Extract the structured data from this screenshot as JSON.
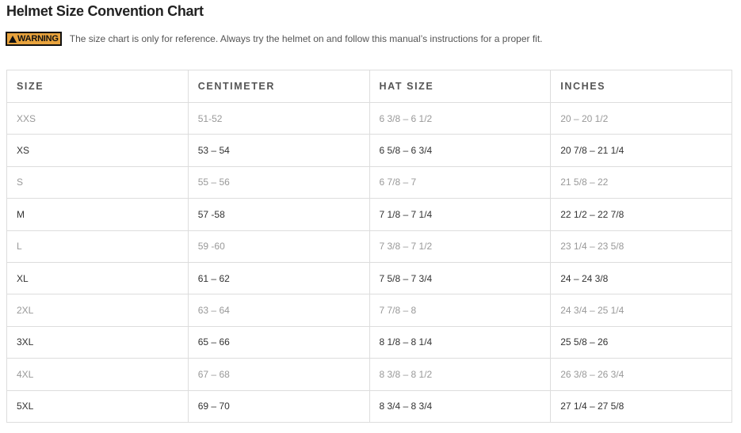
{
  "title": "Helmet Size Convention Chart",
  "warning": {
    "badge": "WARNING",
    "icon": "warning-triangle-icon",
    "badge_color": "#e8a33d",
    "message": "The size chart is only for reference. Always try the helmet on and follow this manual’s instructions for a proper fit."
  },
  "table": {
    "headers": [
      "SIZE",
      "CENTIMETER",
      "HAT SIZE",
      "INCHES"
    ],
    "rows": [
      [
        "XXS",
        "51-52",
        "6 3/8 – 6 1/2",
        "20 – 20 1/2"
      ],
      [
        "XS",
        "53 – 54",
        "6 5/8 – 6 3/4",
        "20 7/8 – 21 1/4"
      ],
      [
        "S",
        "55 – 56",
        "6 7/8 – 7",
        "21 5/8 – 22"
      ],
      [
        "M",
        "57 -58",
        "7 1/8 – 7 1/4",
        "22 1/2 – 22 7/8"
      ],
      [
        "L",
        "59 -60",
        "7 3/8 – 7 1/2",
        "23 1/4 – 23 5/8"
      ],
      [
        "XL",
        "61 – 62",
        "7 5/8 – 7 3/4",
        "24 – 24 3/8"
      ],
      [
        "2XL",
        "63 – 64",
        "7 7/8 – 8",
        "24 3/4 – 25 1/4"
      ],
      [
        "3XL",
        "65 – 66",
        "8 1/8 – 8 1/4",
        "25 5/8 – 26"
      ],
      [
        "4XL",
        "67 – 68",
        "8 3/8 – 8 1/2",
        "26 3/8 – 26 3/4"
      ],
      [
        "5XL",
        "69 – 70",
        "8 3/4 – 8 3/4",
        "27 1/4 – 27 5/8"
      ]
    ]
  }
}
